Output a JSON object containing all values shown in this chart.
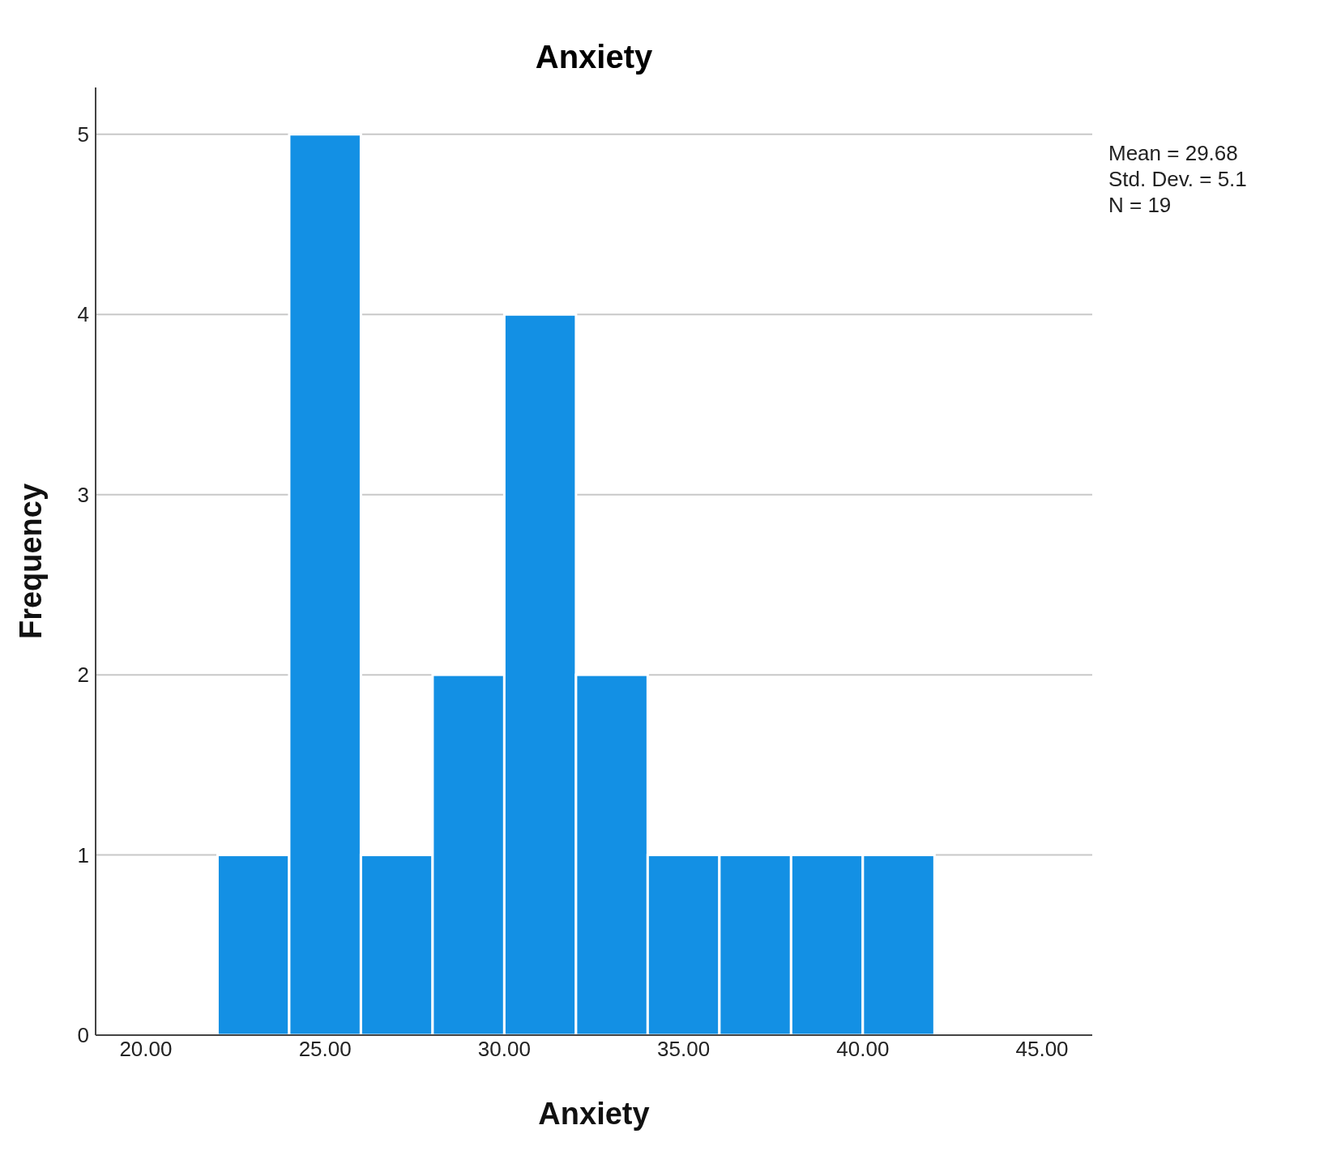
{
  "chart_data": {
    "type": "histogram",
    "title": "Anxiety",
    "xlabel": "Anxiety",
    "ylabel": "Frequency",
    "bins": [
      22,
      24,
      26,
      28,
      30,
      32,
      34,
      36,
      38,
      40,
      42
    ],
    "values": [
      1,
      5,
      1,
      2,
      4,
      2,
      1,
      1,
      1,
      1
    ],
    "color": "#1390e4",
    "xlim": [
      18.6,
      46.4
    ],
    "xticks": [
      {
        "value": 20,
        "label": "20.00"
      },
      {
        "value": 25,
        "label": "25.00"
      },
      {
        "value": 30,
        "label": "30.00"
      },
      {
        "value": 35,
        "label": "35.00"
      },
      {
        "value": 40,
        "label": "40.00"
      },
      {
        "value": 45,
        "label": "45.00"
      }
    ],
    "ylim": [
      0,
      5.26
    ],
    "yticks": [
      0,
      1,
      2,
      3,
      4,
      5
    ],
    "grid": "y",
    "annotations": [
      "Mean = 29.68",
      "Std. Dev. = 5.1",
      "N = 19"
    ]
  }
}
